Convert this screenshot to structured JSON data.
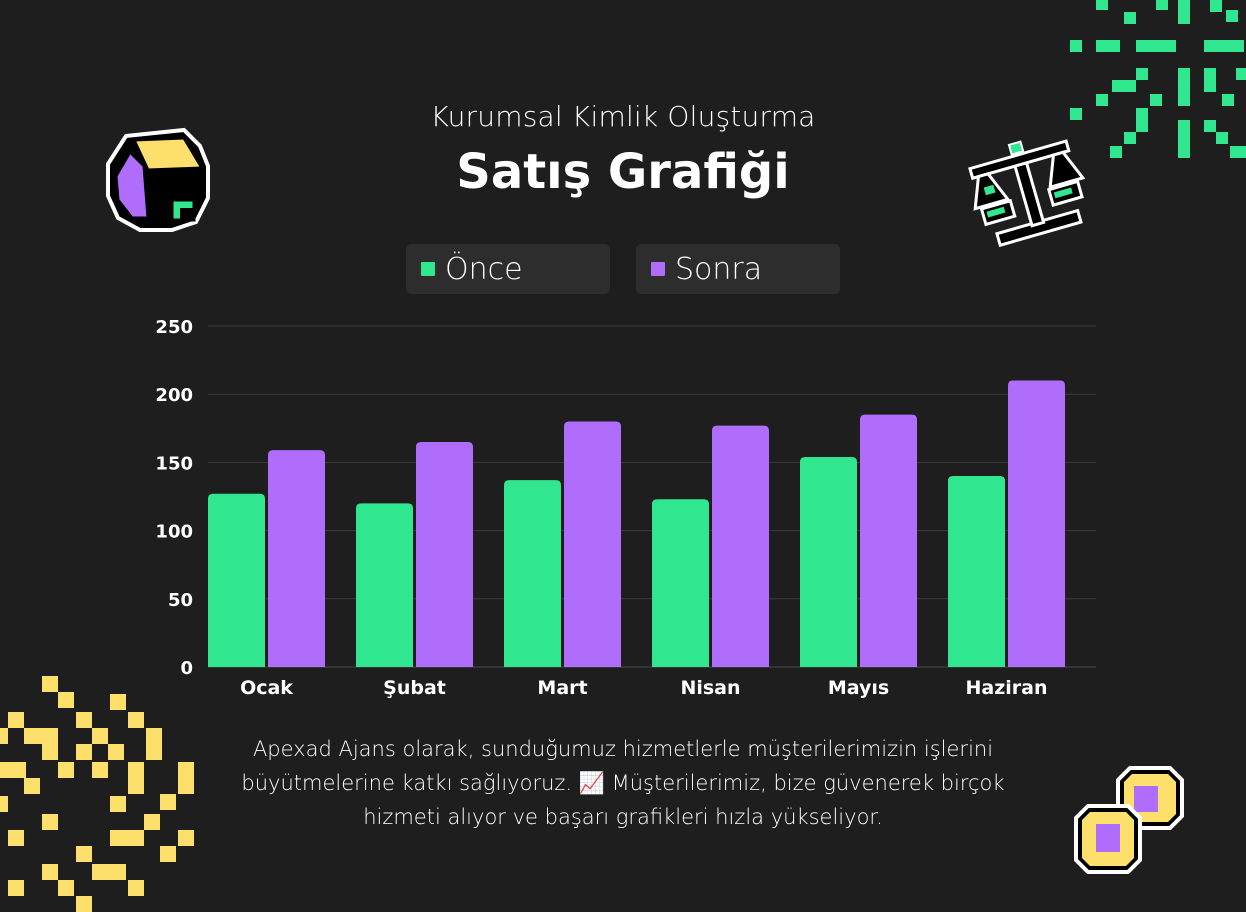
{
  "header": {
    "subtitle": "Kurumsal Kimlik Oluşturma",
    "title": "Satış Grafiği"
  },
  "footer": {
    "text": "Apexad Ajans olarak, sunduğumuz hizmetlerle müşterilerimizin işlerini büyütmelerine katkı sağlıyoruz. 📈 Müşterilerimiz, bize güvenerek birçok hizmeti alıyor ve başarı grafikleri hızla yükseliyor."
  },
  "colors": {
    "background": "#1e1e1e",
    "once": "#30e68f",
    "sonra": "#b06cfb",
    "legend_bg": "#2d2d2d",
    "gridline": "#3a3a3a",
    "deco_green": "#30e68f",
    "deco_yellow": "#fde06c",
    "deco_purple": "#b06cfb"
  },
  "icons": [
    "pie-chart-icon",
    "balance-scale-icon",
    "coins-icon",
    "green-pixel-pattern",
    "yellow-pixel-pattern"
  ],
  "chart_data": {
    "type": "bar",
    "categories": [
      "Ocak",
      "Şubat",
      "Mart",
      "Nisan",
      "Mayıs",
      "Haziran"
    ],
    "series": [
      {
        "name": "Önce",
        "values": [
          127,
          120,
          137,
          123,
          154,
          140
        ]
      },
      {
        "name": "Sonra",
        "values": [
          159,
          165,
          180,
          177,
          185,
          210
        ]
      }
    ],
    "yticks": [
      "0",
      "50",
      "100",
      "150",
      "200",
      "250"
    ],
    "ylim": [
      0,
      250
    ],
    "grid": true,
    "legend": "top-center"
  }
}
